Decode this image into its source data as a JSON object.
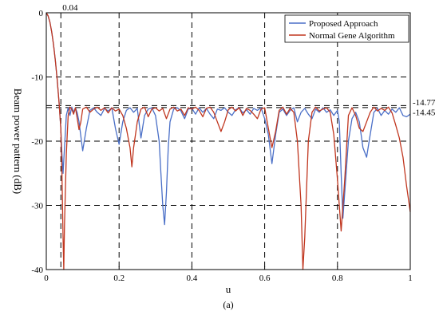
{
  "chart_data": {
    "type": "line",
    "title": "",
    "xlabel": "u",
    "ylabel": "Beam power pattern (dB)",
    "caption": "(a)",
    "xlim": [
      0,
      1
    ],
    "ylim": [
      -40,
      0
    ],
    "x_ticks": [
      0,
      0.2,
      0.4,
      0.6,
      0.8,
      1
    ],
    "x_tick_labels": [
      "0",
      "0.2",
      "0.4",
      "0.6",
      "0.8",
      "1"
    ],
    "y_ticks": [
      0,
      -10,
      -20,
      -30,
      -40
    ],
    "y_tick_labels": [
      "0",
      "-10",
      "-20",
      "-30",
      "-40"
    ],
    "grid": "dashed",
    "legend_position": "top-right",
    "reference_lines": {
      "vertical": [
        {
          "x": 0.04,
          "label": "0.04"
        }
      ],
      "horizontal": [
        {
          "y": -14.45,
          "label": "-14.45"
        },
        {
          "y": -14.77,
          "label": "-14.77"
        }
      ]
    },
    "series": [
      {
        "name": "Proposed Approach",
        "color": "#4a6fc7",
        "points": [
          [
            0,
            0
          ],
          [
            0.005,
            -0.5
          ],
          [
            0.01,
            -1.5
          ],
          [
            0.015,
            -3
          ],
          [
            0.02,
            -5
          ],
          [
            0.025,
            -7.5
          ],
          [
            0.03,
            -10.5
          ],
          [
            0.035,
            -14
          ],
          [
            0.04,
            -18
          ],
          [
            0.043,
            -22
          ],
          [
            0.046,
            -25
          ],
          [
            0.05,
            -21
          ],
          [
            0.055,
            -16
          ],
          [
            0.06,
            -14.8
          ],
          [
            0.065,
            -16
          ],
          [
            0.07,
            -14.7
          ],
          [
            0.075,
            -15.5
          ],
          [
            0.08,
            -14.8
          ],
          [
            0.085,
            -15.6
          ],
          [
            0.09,
            -17
          ],
          [
            0.1,
            -21.5
          ],
          [
            0.11,
            -18
          ],
          [
            0.12,
            -15.2
          ],
          [
            0.13,
            -14.8
          ],
          [
            0.14,
            -15.5
          ],
          [
            0.15,
            -16
          ],
          [
            0.16,
            -14.9
          ],
          [
            0.17,
            -15.3
          ],
          [
            0.18,
            -14.8
          ],
          [
            0.19,
            -18
          ],
          [
            0.2,
            -20.5
          ],
          [
            0.21,
            -17
          ],
          [
            0.22,
            -15.2
          ],
          [
            0.23,
            -14.8
          ],
          [
            0.24,
            -15.5
          ],
          [
            0.25,
            -14.9
          ],
          [
            0.26,
            -19.5
          ],
          [
            0.27,
            -16
          ],
          [
            0.28,
            -15
          ],
          [
            0.29,
            -14.8
          ],
          [
            0.3,
            -16
          ],
          [
            0.31,
            -20
          ],
          [
            0.315,
            -25
          ],
          [
            0.32,
            -30
          ],
          [
            0.325,
            -33
          ],
          [
            0.33,
            -28
          ],
          [
            0.335,
            -21
          ],
          [
            0.34,
            -17
          ],
          [
            0.35,
            -15
          ],
          [
            0.36,
            -14.8
          ],
          [
            0.37,
            -15.3
          ],
          [
            0.38,
            -16.5
          ],
          [
            0.39,
            -15
          ],
          [
            0.4,
            -14.9
          ],
          [
            0.41,
            -15.8
          ],
          [
            0.42,
            -14.8
          ],
          [
            0.43,
            -15.5
          ],
          [
            0.44,
            -14.9
          ],
          [
            0.45,
            -15.8
          ],
          [
            0.46,
            -16.5
          ],
          [
            0.47,
            -15
          ],
          [
            0.48,
            -15.2
          ],
          [
            0.49,
            -14.8
          ],
          [
            0.5,
            -15.5
          ],
          [
            0.51,
            -16
          ],
          [
            0.52,
            -15.1
          ],
          [
            0.53,
            -14.8
          ],
          [
            0.54,
            -15.6
          ],
          [
            0.55,
            -15.1
          ],
          [
            0.56,
            -15.8
          ],
          [
            0.57,
            -14.9
          ],
          [
            0.58,
            -15.2
          ],
          [
            0.59,
            -14.8
          ],
          [
            0.6,
            -16.5
          ],
          [
            0.61,
            -19
          ],
          [
            0.62,
            -23.5
          ],
          [
            0.63,
            -19
          ],
          [
            0.64,
            -15.5
          ],
          [
            0.65,
            -15
          ],
          [
            0.66,
            -16
          ],
          [
            0.67,
            -15.2
          ],
          [
            0.68,
            -14.8
          ],
          [
            0.69,
            -17
          ],
          [
            0.7,
            -15.5
          ],
          [
            0.71,
            -14.9
          ],
          [
            0.72,
            -15.8
          ],
          [
            0.73,
            -16.5
          ],
          [
            0.74,
            -15
          ],
          [
            0.75,
            -15.5
          ],
          [
            0.76,
            -14.8
          ],
          [
            0.77,
            -15.5
          ],
          [
            0.78,
            -15.1
          ],
          [
            0.79,
            -16
          ],
          [
            0.8,
            -15.2
          ],
          [
            0.805,
            -17
          ],
          [
            0.81,
            -25
          ],
          [
            0.815,
            -32
          ],
          [
            0.82,
            -28
          ],
          [
            0.83,
            -20
          ],
          [
            0.84,
            -16.5
          ],
          [
            0.85,
            -15.5
          ],
          [
            0.86,
            -17
          ],
          [
            0.87,
            -21
          ],
          [
            0.88,
            -22.5
          ],
          [
            0.89,
            -19
          ],
          [
            0.9,
            -15.5
          ],
          [
            0.91,
            -14.9
          ],
          [
            0.92,
            -16
          ],
          [
            0.93,
            -15.2
          ],
          [
            0.94,
            -15.8
          ],
          [
            0.95,
            -15
          ],
          [
            0.96,
            -15.5
          ],
          [
            0.97,
            -14.8
          ],
          [
            0.98,
            -16
          ],
          [
            0.99,
            -16.2
          ],
          [
            1,
            -15.8
          ]
        ]
      },
      {
        "name": "Normal Gene Algorithm",
        "color": "#c0361f",
        "points": [
          [
            0,
            0
          ],
          [
            0.005,
            -0.5
          ],
          [
            0.01,
            -1.5
          ],
          [
            0.015,
            -3
          ],
          [
            0.02,
            -5
          ],
          [
            0.025,
            -7.5
          ],
          [
            0.03,
            -10.5
          ],
          [
            0.035,
            -14
          ],
          [
            0.04,
            -18
          ],
          [
            0.043,
            -25
          ],
          [
            0.046,
            -35
          ],
          [
            0.048,
            -40
          ],
          [
            0.05,
            -33
          ],
          [
            0.055,
            -22
          ],
          [
            0.06,
            -16
          ],
          [
            0.065,
            -14.7
          ],
          [
            0.07,
            -15
          ],
          [
            0.075,
            -15.8
          ],
          [
            0.08,
            -14.8
          ],
          [
            0.085,
            -16.5
          ],
          [
            0.09,
            -18.2
          ],
          [
            0.095,
            -17
          ],
          [
            0.1,
            -15
          ],
          [
            0.11,
            -14.7
          ],
          [
            0.12,
            -15.5
          ],
          [
            0.13,
            -15
          ],
          [
            0.14,
            -14.7
          ],
          [
            0.15,
            -15.2
          ],
          [
            0.16,
            -14.8
          ],
          [
            0.17,
            -15.6
          ],
          [
            0.18,
            -14.8
          ],
          [
            0.19,
            -15.3
          ],
          [
            0.2,
            -15
          ],
          [
            0.21,
            -16
          ],
          [
            0.22,
            -18
          ],
          [
            0.23,
            -21
          ],
          [
            0.235,
            -24
          ],
          [
            0.24,
            -21
          ],
          [
            0.25,
            -17
          ],
          [
            0.26,
            -15
          ],
          [
            0.27,
            -14.7
          ],
          [
            0.28,
            -16.2
          ],
          [
            0.29,
            -15
          ],
          [
            0.3,
            -14.8
          ],
          [
            0.31,
            -15.3
          ],
          [
            0.32,
            -14.9
          ],
          [
            0.33,
            -16.5
          ],
          [
            0.34,
            -15
          ],
          [
            0.35,
            -14.7
          ],
          [
            0.36,
            -15.3
          ],
          [
            0.37,
            -15
          ],
          [
            0.38,
            -16
          ],
          [
            0.39,
            -14.8
          ],
          [
            0.4,
            -15
          ],
          [
            0.41,
            -14.7
          ],
          [
            0.42,
            -15.2
          ],
          [
            0.43,
            -16.2
          ],
          [
            0.44,
            -14.9
          ],
          [
            0.45,
            -14.7
          ],
          [
            0.46,
            -15.5
          ],
          [
            0.47,
            -17
          ],
          [
            0.48,
            -18.5
          ],
          [
            0.49,
            -17
          ],
          [
            0.5,
            -15.1
          ],
          [
            0.51,
            -14.7
          ],
          [
            0.52,
            -15.3
          ],
          [
            0.53,
            -14.8
          ],
          [
            0.54,
            -16
          ],
          [
            0.55,
            -14.9
          ],
          [
            0.56,
            -15.2
          ],
          [
            0.57,
            -15.8
          ],
          [
            0.58,
            -16.5
          ],
          [
            0.59,
            -15
          ],
          [
            0.6,
            -14.8
          ],
          [
            0.61,
            -18
          ],
          [
            0.62,
            -21
          ],
          [
            0.63,
            -18.5
          ],
          [
            0.64,
            -15.2
          ],
          [
            0.65,
            -14.7
          ],
          [
            0.66,
            -15.8
          ],
          [
            0.67,
            -14.9
          ],
          [
            0.68,
            -15.5
          ],
          [
            0.69,
            -20
          ],
          [
            0.7,
            -30
          ],
          [
            0.705,
            -40
          ],
          [
            0.71,
            -35
          ],
          [
            0.72,
            -20
          ],
          [
            0.73,
            -15.5
          ],
          [
            0.74,
            -14.7
          ],
          [
            0.75,
            -15.3
          ],
          [
            0.76,
            -15
          ],
          [
            0.77,
            -14.8
          ],
          [
            0.78,
            -15.5
          ],
          [
            0.79,
            -19
          ],
          [
            0.8,
            -26
          ],
          [
            0.81,
            -34
          ],
          [
            0.82,
            -26
          ],
          [
            0.83,
            -16
          ],
          [
            0.84,
            -14.8
          ],
          [
            0.85,
            -16
          ],
          [
            0.86,
            -18
          ],
          [
            0.87,
            -18.5
          ],
          [
            0.88,
            -17
          ],
          [
            0.89,
            -15.5
          ],
          [
            0.9,
            -14.7
          ],
          [
            0.91,
            -15.3
          ],
          [
            0.92,
            -14.9
          ],
          [
            0.93,
            -15.2
          ],
          [
            0.94,
            -14.7
          ],
          [
            0.95,
            -15.6
          ],
          [
            0.96,
            -17.5
          ],
          [
            0.97,
            -19.5
          ],
          [
            0.98,
            -22.5
          ],
          [
            0.99,
            -27
          ],
          [
            1,
            -31
          ]
        ]
      }
    ]
  }
}
